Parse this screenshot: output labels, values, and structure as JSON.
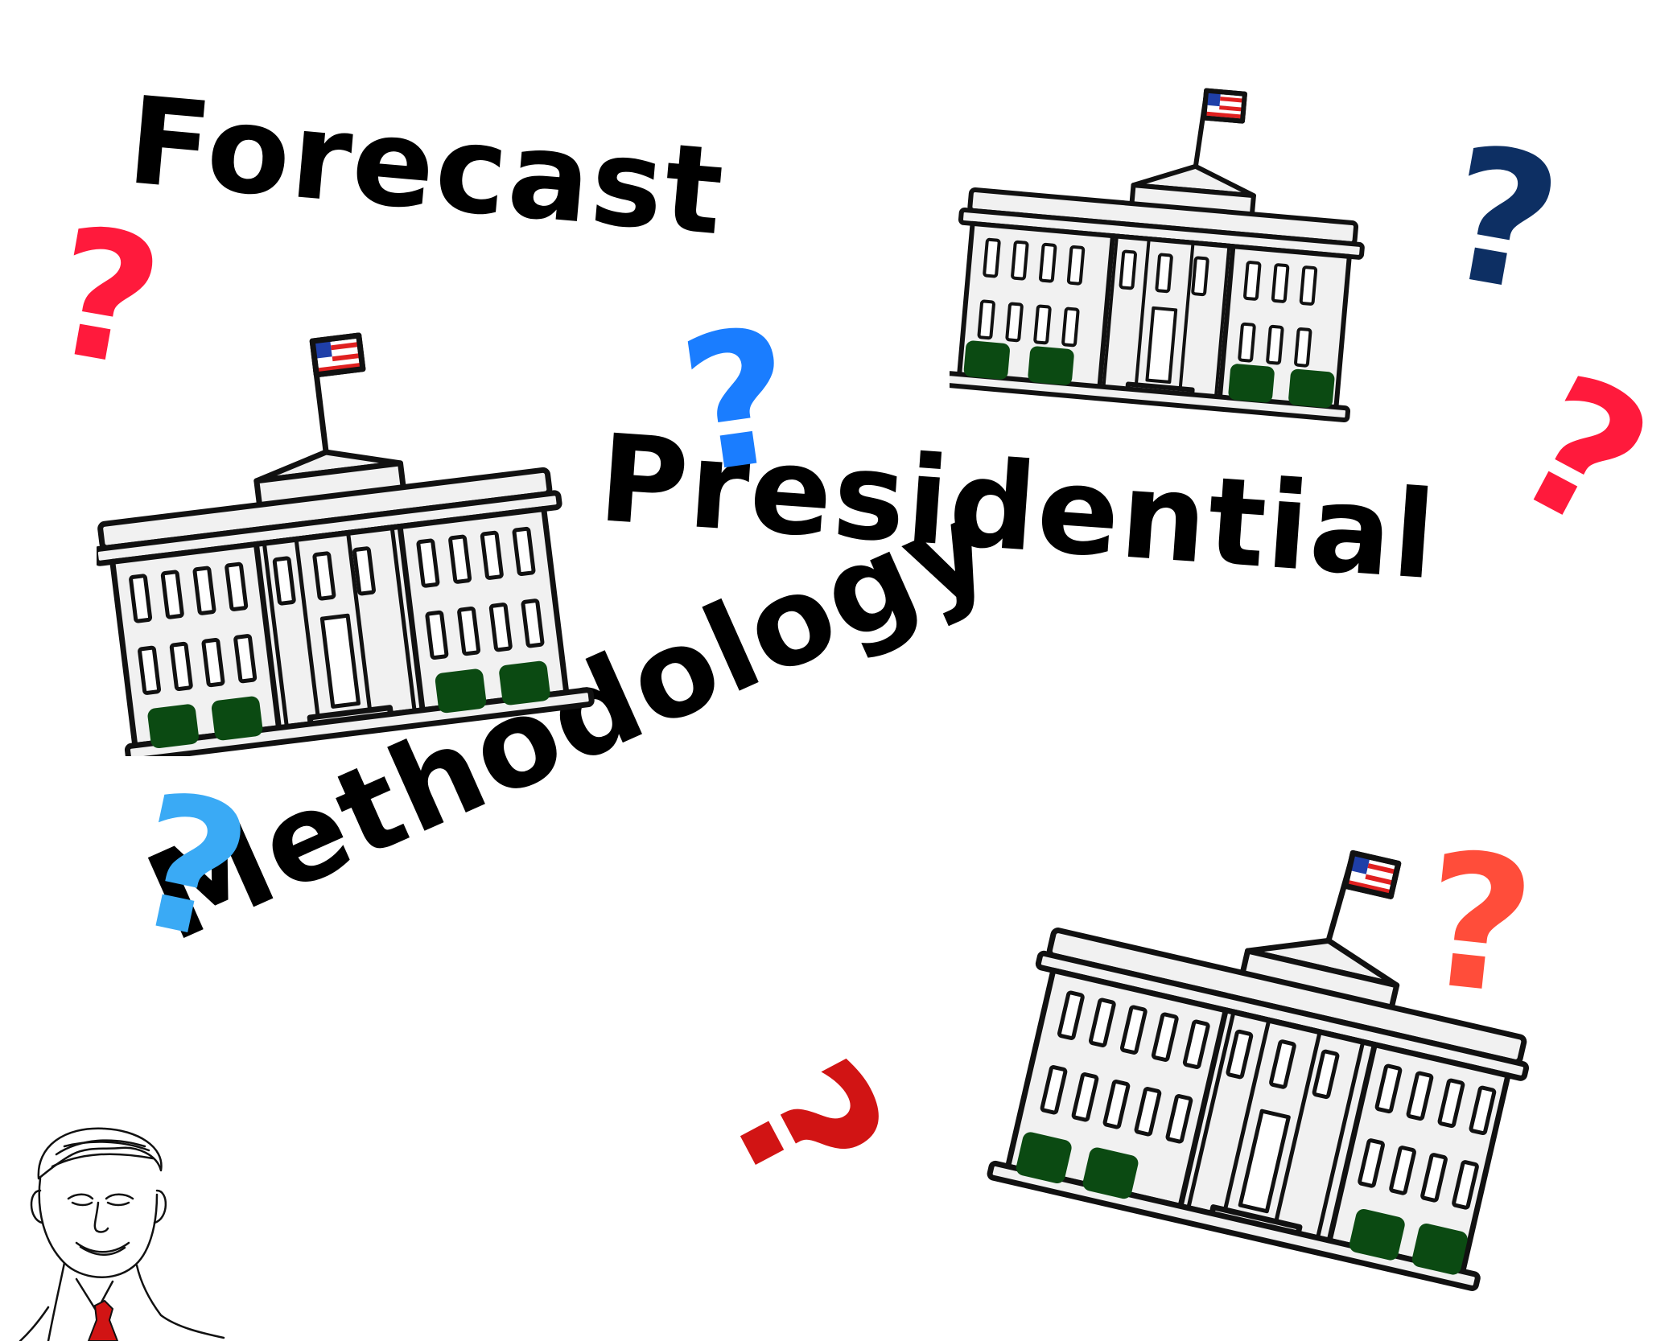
{
  "title_words": {
    "word1": "Forecast",
    "word2": "Presidential",
    "word3": "Methodology"
  },
  "question_mark_glyph": "?",
  "question_marks": [
    {
      "name": "red",
      "color": "#ff1a3c"
    },
    {
      "name": "blue",
      "color": "#1a7dff"
    },
    {
      "name": "navy",
      "color": "#0d2f63"
    },
    {
      "name": "red",
      "color": "#ff1a3c"
    },
    {
      "name": "light-blue",
      "color": "#3aaaf5"
    },
    {
      "name": "coral",
      "color": "#ff4d3a"
    },
    {
      "name": "dark-red",
      "color": "#d11414"
    }
  ],
  "icons": [
    "white-house-icon",
    "flag-icon",
    "portrait-drawing"
  ],
  "colors": {
    "building_fill": "#f1f1f1",
    "outline": "#111111",
    "bush": "#0b4a12",
    "flag_blue": "#1f3fa8",
    "flag_red": "#e02020",
    "tie": "#d11414"
  }
}
